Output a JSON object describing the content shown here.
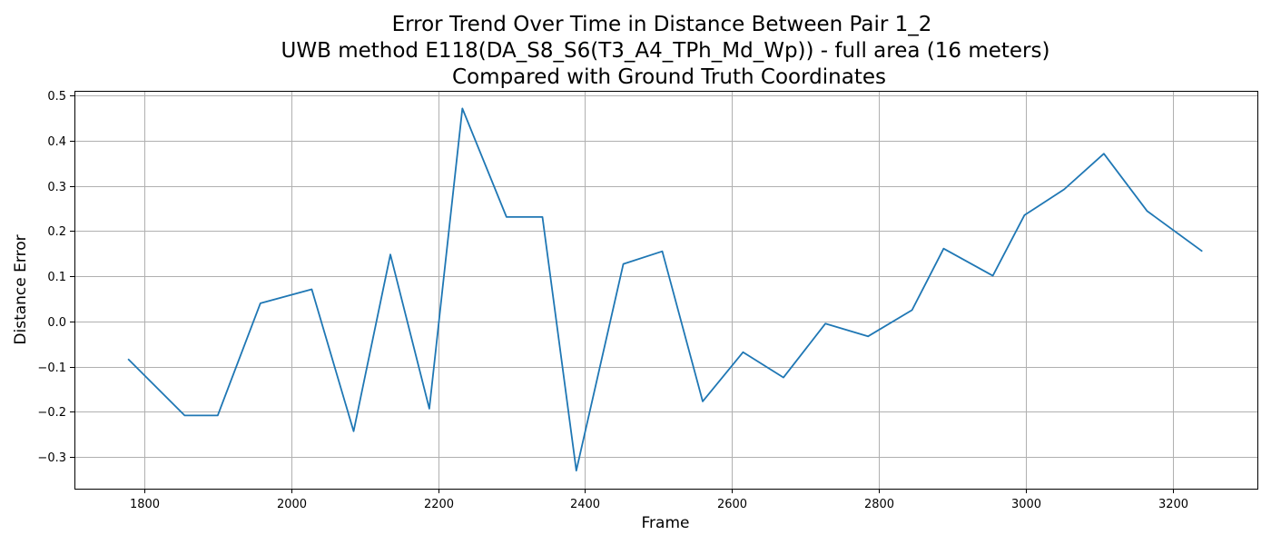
{
  "chart_data": {
    "type": "line",
    "title": [
      "Error Trend Over Time in Distance Between Pair 1_2",
      "UWB method E118(DA_S8_S6(T3_A4_TPh_Md_Wp)) - full area (16 meters)",
      "Compared with Ground Truth Coordinates"
    ],
    "xlabel": "Frame",
    "ylabel": "Distance Error",
    "xlim": [
      1705,
      3315
    ],
    "ylim": [
      -0.37,
      0.51
    ],
    "xticks": [
      1800,
      2000,
      2200,
      2400,
      2600,
      2800,
      3000,
      3200
    ],
    "xtick_labels": [
      "1800",
      "2000",
      "2200",
      "2400",
      "2600",
      "2800",
      "3000",
      "3200"
    ],
    "yticks": [
      -0.3,
      -0.2,
      -0.1,
      0.0,
      0.1,
      0.2,
      0.3,
      0.4,
      0.5
    ],
    "ytick_labels": [
      "−0.3",
      "−0.2",
      "−0.1",
      "0.0",
      "0.1",
      "0.2",
      "0.3",
      "0.4",
      "0.5"
    ],
    "grid": true,
    "series": [
      {
        "color": "#1f77b4",
        "x": [
          1778,
          1855,
          1900,
          1958,
          2028,
          2085,
          2135,
          2188,
          2233,
          2293,
          2342,
          2388,
          2452,
          2505,
          2560,
          2615,
          2670,
          2727,
          2785,
          2845,
          2888,
          2955,
          2998,
          3052,
          3106,
          3165,
          3240
        ],
        "y": [
          -0.083,
          -0.208,
          -0.208,
          0.04,
          0.071,
          -0.243,
          0.148,
          -0.193,
          0.471,
          0.231,
          0.231,
          -0.33,
          0.127,
          0.155,
          -0.177,
          -0.068,
          -0.124,
          -0.005,
          -0.033,
          0.025,
          0.161,
          0.101,
          0.235,
          0.292,
          0.371,
          0.244,
          0.155
        ]
      }
    ]
  }
}
